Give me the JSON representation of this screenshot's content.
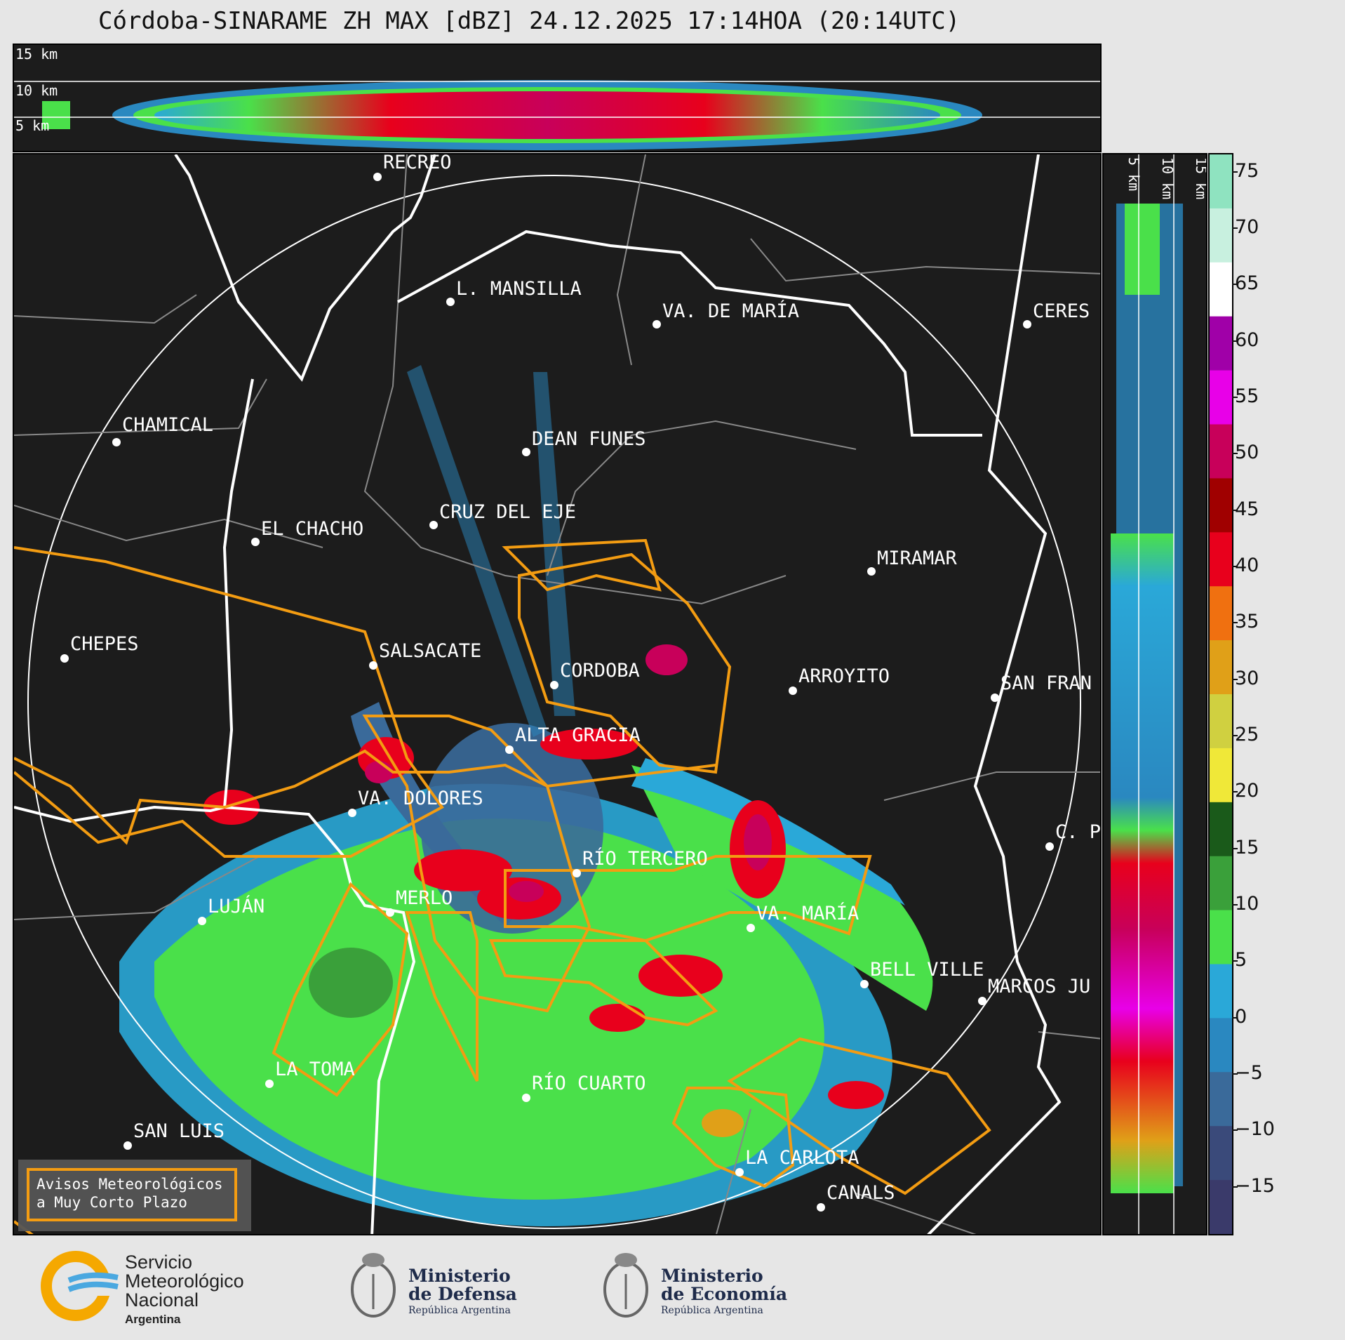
{
  "title": "Córdoba-SINARAME ZH MAX [dBZ] 24.12.2025 17:14HOA (20:14UTC)",
  "top_panel": {
    "height_labels": [
      "15 km",
      "10 km",
      "5 km"
    ]
  },
  "side_panel": {
    "height_labels": [
      "5 km",
      "10 km",
      "15 km"
    ]
  },
  "cities": [
    {
      "name": "RECREO"
    },
    {
      "name": "L. MANSILLA"
    },
    {
      "name": "VA. DE MARÍA"
    },
    {
      "name": "CERES"
    },
    {
      "name": "CHAMICAL"
    },
    {
      "name": "DEAN FUNES"
    },
    {
      "name": "CRUZ DEL EJE"
    },
    {
      "name": "EL CHACHO"
    },
    {
      "name": "MIRAMAR"
    },
    {
      "name": "CHEPES"
    },
    {
      "name": "SALSACATE"
    },
    {
      "name": "CORDOBA"
    },
    {
      "name": "ARROYITO"
    },
    {
      "name": "SAN FRAN"
    },
    {
      "name": "ALTA GRACIA"
    },
    {
      "name": "VA. DOLORES"
    },
    {
      "name": "C. P"
    },
    {
      "name": "RÍO TERCERO"
    },
    {
      "name": "LUJÁN"
    },
    {
      "name": "MERLO"
    },
    {
      "name": "VA. MARÍA"
    },
    {
      "name": "BELL VILLE"
    },
    {
      "name": "MARCOS JU"
    },
    {
      "name": "LA TOMA"
    },
    {
      "name": "RÍO CUARTO"
    },
    {
      "name": "SAN LUIS"
    },
    {
      "name": "LA CARLOTA"
    },
    {
      "name": "CANALS"
    }
  ],
  "colorbar": {
    "unit": "dBZ",
    "ticks": [
      "75",
      "70",
      "65",
      "60",
      "55",
      "50",
      "45",
      "40",
      "35",
      "30",
      "25",
      "20",
      "15",
      "10",
      "5",
      "0",
      "−5",
      "−10",
      "−15"
    ],
    "stops": [
      "#8fe3c0",
      "#c8f0df",
      "#ffffff",
      "#a000a8",
      "#e800e8",
      "#c8005a",
      "#a00000",
      "#e8001c",
      "#f07010",
      "#e0a018",
      "#d0d040",
      "#f0e838",
      "#1a5a1a",
      "#3aa03a",
      "#4ae04a",
      "#2aa8d8",
      "#2a88c0",
      "#3a6a9a",
      "#3a4a7a",
      "#3a3a6a"
    ]
  },
  "legend": {
    "line1": "Avisos Meteorológicos",
    "line2": "a Muy Corto Plazo"
  },
  "logos": {
    "smn": [
      "Servicio",
      "Meteorológico",
      "Nacional",
      "Argentina"
    ],
    "defensa": [
      "Ministerio",
      "de Defensa",
      "República Argentina"
    ],
    "economia": [
      "Ministerio",
      "de Economía",
      "República Argentina"
    ]
  }
}
